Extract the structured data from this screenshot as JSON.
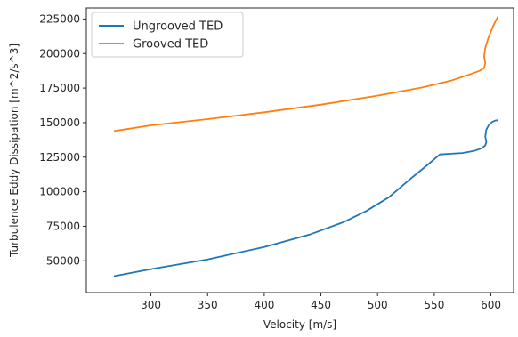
{
  "chart_data": {
    "type": "line",
    "title": "",
    "xlabel": "Velocity [m/s]",
    "ylabel": "Turbulence Eddy Dissipation [m^2/s^3]",
    "xlim": [
      243,
      620
    ],
    "ylim": [
      27000,
      233000
    ],
    "xticks": [
      {
        "value": 300,
        "label": "300"
      },
      {
        "value": 350,
        "label": "350"
      },
      {
        "value": 400,
        "label": "400"
      },
      {
        "value": 450,
        "label": "450"
      },
      {
        "value": 500,
        "label": "500"
      },
      {
        "value": 550,
        "label": "550"
      },
      {
        "value": 600,
        "label": "600"
      }
    ],
    "yticks": [
      {
        "value": 50000,
        "label": "50000"
      },
      {
        "value": 75000,
        "label": "75000"
      },
      {
        "value": 100000,
        "label": "100000"
      },
      {
        "value": 125000,
        "label": "125000"
      },
      {
        "value": 150000,
        "label": "150000"
      },
      {
        "value": 175000,
        "label": "175000"
      },
      {
        "value": 200000,
        "label": "200000"
      },
      {
        "value": 225000,
        "label": "225000"
      }
    ],
    "grid": false,
    "legend_position": "top-left",
    "series": [
      {
        "name": "Ungrooved TED",
        "color": "#1f77b4",
        "points": [
          [
            268,
            39000
          ],
          [
            300,
            44000
          ],
          [
            350,
            51000
          ],
          [
            400,
            60000
          ],
          [
            440,
            69000
          ],
          [
            470,
            78000
          ],
          [
            490,
            86000
          ],
          [
            510,
            96000
          ],
          [
            530,
            110000
          ],
          [
            545,
            120000
          ],
          [
            555,
            127000
          ],
          [
            565,
            127500
          ],
          [
            575,
            128000
          ],
          [
            585,
            129500
          ],
          [
            592,
            131500
          ],
          [
            595,
            133500
          ],
          [
            596,
            136000
          ],
          [
            595,
            140000
          ],
          [
            596,
            145000
          ],
          [
            598,
            148000
          ],
          [
            601,
            150500
          ],
          [
            604,
            151500
          ],
          [
            606,
            151800
          ]
        ]
      },
      {
        "name": "Grooved TED",
        "color": "#ff7f0e",
        "points": [
          [
            268,
            144000
          ],
          [
            300,
            148000
          ],
          [
            350,
            152500
          ],
          [
            400,
            157500
          ],
          [
            450,
            163000
          ],
          [
            500,
            169500
          ],
          [
            540,
            175500
          ],
          [
            565,
            180500
          ],
          [
            580,
            184500
          ],
          [
            590,
            187500
          ],
          [
            594,
            189500
          ],
          [
            595,
            193000
          ],
          [
            594,
            198000
          ],
          [
            595,
            204000
          ],
          [
            598,
            212000
          ],
          [
            602,
            220000
          ],
          [
            606,
            226500
          ]
        ]
      }
    ]
  }
}
